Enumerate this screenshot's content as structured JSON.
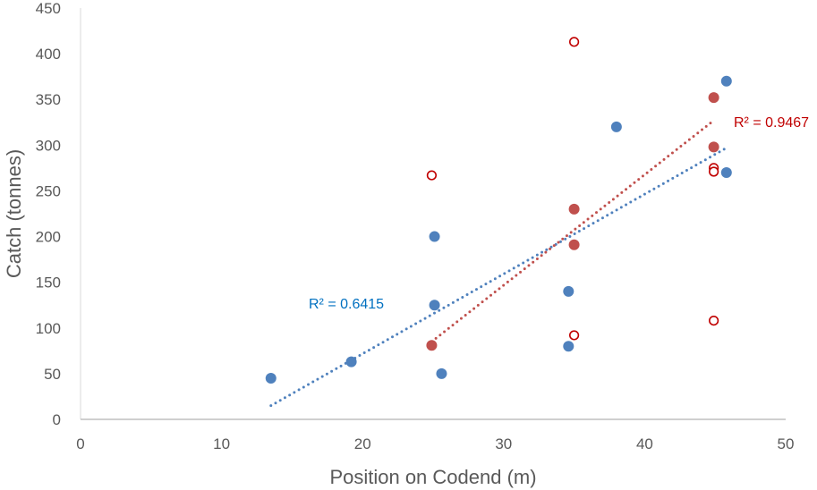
{
  "chart_data": {
    "type": "scatter",
    "title": "",
    "xlabel": "Position on Codend (m)",
    "ylabel": "Catch (tonnes)",
    "xlim": [
      0,
      50
    ],
    "ylim": [
      0,
      450
    ],
    "xticks": [
      0,
      10,
      20,
      30,
      40,
      50
    ],
    "yticks": [
      0,
      50,
      100,
      150,
      200,
      250,
      300,
      350,
      400,
      450
    ],
    "grid": false,
    "legend": "none",
    "series": [
      {
        "marker": "filled-circle",
        "color": "#4f81bd",
        "points": [
          [
            13.5,
            45
          ],
          [
            19.2,
            63
          ],
          [
            25.1,
            200
          ],
          [
            25.1,
            125
          ],
          [
            25.6,
            50
          ],
          [
            34.6,
            140
          ],
          [
            34.6,
            80
          ],
          [
            38.0,
            320
          ],
          [
            45.8,
            370
          ],
          [
            45.8,
            270
          ]
        ],
        "trendline": {
          "type": "linear",
          "style": "dotted",
          "x_range": [
            13.5,
            45.8
          ],
          "y_range": [
            15,
            297
          ],
          "r2_label": "R² = 0.6415",
          "color": "#0070c0"
        }
      },
      {
        "marker": "filled-circle",
        "color": "#c0504d",
        "points": [
          [
            24.9,
            81
          ],
          [
            35.0,
            230
          ],
          [
            35.0,
            191
          ],
          [
            44.9,
            352
          ],
          [
            44.9,
            298
          ]
        ],
        "trendline": {
          "type": "linear",
          "style": "dotted",
          "x_range": [
            24.9,
            44.9
          ],
          "y_range": [
            85,
            327
          ],
          "r2_label": "R² = 0.9467",
          "color": "#c00000"
        }
      },
      {
        "marker": "open-circle",
        "color": "#c00000",
        "points": [
          [
            35.0,
            413
          ],
          [
            24.9,
            267
          ],
          [
            35.0,
            92
          ],
          [
            44.9,
            275
          ],
          [
            44.9,
            271
          ],
          [
            44.9,
            108
          ]
        ]
      }
    ]
  }
}
